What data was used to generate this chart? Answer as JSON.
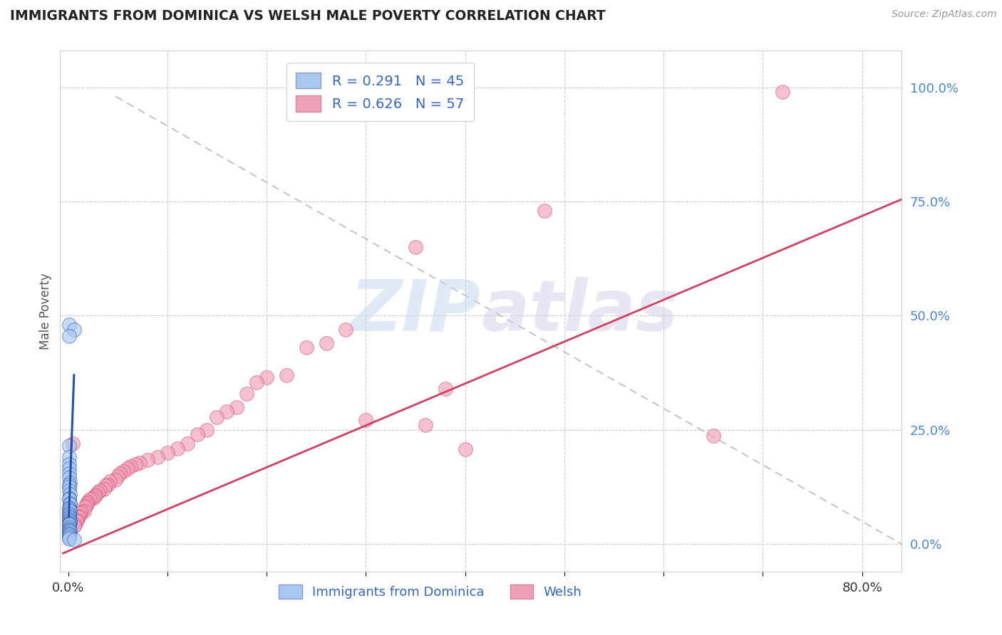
{
  "title": "IMMIGRANTS FROM DOMINICA VS WELSH MALE POVERTY CORRELATION CHART",
  "source": "Source: ZipAtlas.com",
  "ylabel": "Male Poverty",
  "ytick_labels": [
    "0.0%",
    "25.0%",
    "50.0%",
    "75.0%",
    "100.0%"
  ],
  "ytick_positions": [
    0.0,
    0.25,
    0.5,
    0.75,
    1.0
  ],
  "xmin": -0.008,
  "xmax": 0.84,
  "ymin": -0.06,
  "ymax": 1.08,
  "color_blue": "#a8c8f0",
  "color_pink": "#f0a0b8",
  "line_blue": "#2050b0",
  "line_pink": "#d04060",
  "line_dashed_color": "#b0b8cc",
  "watermark_zip": "ZIP",
  "watermark_atlas": "atlas",
  "blue_scatter_x": [
    0.0008,
    0.001,
    0.0008,
    0.0012,
    0.0009,
    0.0011,
    0.0015,
    0.0013,
    0.0011,
    0.0008,
    0.0018,
    0.0013,
    0.001,
    0.002,
    0.0016,
    0.0014,
    0.001,
    0.0008,
    0.0016,
    0.0013,
    0.001,
    0.0008,
    0.0013,
    0.001,
    0.0008,
    0.0018,
    0.0015,
    0.001,
    0.0013,
    0.0008,
    0.001,
    0.0008,
    0.0012,
    0.001,
    0.0015,
    0.0008,
    0.0013,
    0.001,
    0.0008,
    0.001,
    0.0008,
    0.0008,
    0.006,
    0.0008,
    0.006
  ],
  "blue_scatter_y": [
    0.215,
    0.19,
    0.175,
    0.165,
    0.155,
    0.145,
    0.135,
    0.13,
    0.125,
    0.118,
    0.11,
    0.1,
    0.098,
    0.09,
    0.088,
    0.08,
    0.078,
    0.076,
    0.072,
    0.068,
    0.065,
    0.062,
    0.058,
    0.055,
    0.052,
    0.05,
    0.048,
    0.046,
    0.044,
    0.042,
    0.038,
    0.035,
    0.032,
    0.03,
    0.028,
    0.025,
    0.022,
    0.02,
    0.018,
    0.015,
    0.012,
    0.48,
    0.47,
    0.455,
    0.01
  ],
  "pink_scatter_x": [
    0.72,
    0.48,
    0.35,
    0.28,
    0.26,
    0.24,
    0.22,
    0.2,
    0.19,
    0.18,
    0.17,
    0.16,
    0.15,
    0.14,
    0.13,
    0.12,
    0.11,
    0.1,
    0.09,
    0.08,
    0.072,
    0.068,
    0.063,
    0.06,
    0.056,
    0.052,
    0.05,
    0.048,
    0.042,
    0.04,
    0.038,
    0.036,
    0.032,
    0.03,
    0.028,
    0.027,
    0.025,
    0.022,
    0.02,
    0.019,
    0.018,
    0.017,
    0.016,
    0.013,
    0.012,
    0.011,
    0.01,
    0.009,
    0.008,
    0.007,
    0.006,
    0.005,
    0.36,
    0.38,
    0.3,
    0.65,
    0.4
  ],
  "pink_scatter_y": [
    0.99,
    0.73,
    0.65,
    0.47,
    0.44,
    0.43,
    0.37,
    0.365,
    0.355,
    0.33,
    0.3,
    0.29,
    0.278,
    0.25,
    0.24,
    0.22,
    0.21,
    0.2,
    0.19,
    0.185,
    0.178,
    0.175,
    0.17,
    0.165,
    0.16,
    0.155,
    0.148,
    0.14,
    0.138,
    0.13,
    0.128,
    0.12,
    0.118,
    0.112,
    0.108,
    0.105,
    0.1,
    0.098,
    0.092,
    0.09,
    0.085,
    0.082,
    0.072,
    0.07,
    0.068,
    0.062,
    0.06,
    0.052,
    0.05,
    0.042,
    0.04,
    0.22,
    0.26,
    0.34,
    0.272,
    0.238,
    0.208
  ],
  "blue_line_x": [
    0.0008,
    0.006
  ],
  "blue_line_y": [
    0.06,
    0.37
  ],
  "pink_line_x": [
    -0.005,
    0.84
  ],
  "pink_line_y": [
    -0.02,
    0.755
  ],
  "dash_line_x": [
    0.048,
    0.84
  ],
  "dash_line_y": [
    0.98,
    0.0
  ]
}
